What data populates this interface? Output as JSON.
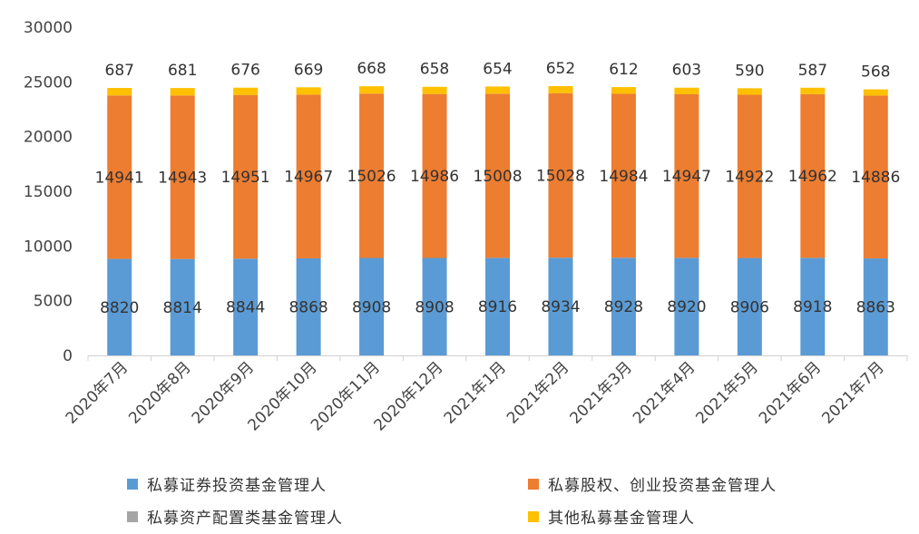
{
  "chart_data": {
    "type": "bar",
    "stacked": true,
    "categories": [
      "2020年7月",
      "2020年8月",
      "2020年9月",
      "2020年10月",
      "2020年11月",
      "2020年12月",
      "2021年1月",
      "2021年2月",
      "2021年3月",
      "2021年4月",
      "2021年5月",
      "2021年6月",
      "2021年7月"
    ],
    "ylim": [
      0,
      30000
    ],
    "yticks": [
      0,
      5000,
      10000,
      15000,
      20000,
      25000,
      30000
    ],
    "grid": false,
    "legend_position": "bottom",
    "series": [
      {
        "name": "私募证券投资基金管理人",
        "color": "#5b9bd5",
        "values": [
          8820,
          8814,
          8844,
          8868,
          8908,
          8908,
          8916,
          8934,
          8928,
          8920,
          8906,
          8918,
          8863
        ]
      },
      {
        "name": "私募股权、创业投资基金管理人",
        "color": "#ed7d31",
        "values": [
          14941,
          14943,
          14951,
          14967,
          15026,
          14986,
          15008,
          15028,
          14984,
          14947,
          14922,
          14962,
          14886
        ]
      },
      {
        "name": "私募资产配置类基金管理人",
        "color": "#a5a5a5",
        "values": [
          0,
          0,
          0,
          0,
          0,
          0,
          0,
          0,
          0,
          0,
          0,
          0,
          0
        ]
      },
      {
        "name": "其他私募基金管理人",
        "color": "#ffc000",
        "values": [
          687,
          681,
          676,
          669,
          668,
          658,
          654,
          652,
          612,
          603,
          590,
          587,
          568
        ]
      }
    ]
  }
}
